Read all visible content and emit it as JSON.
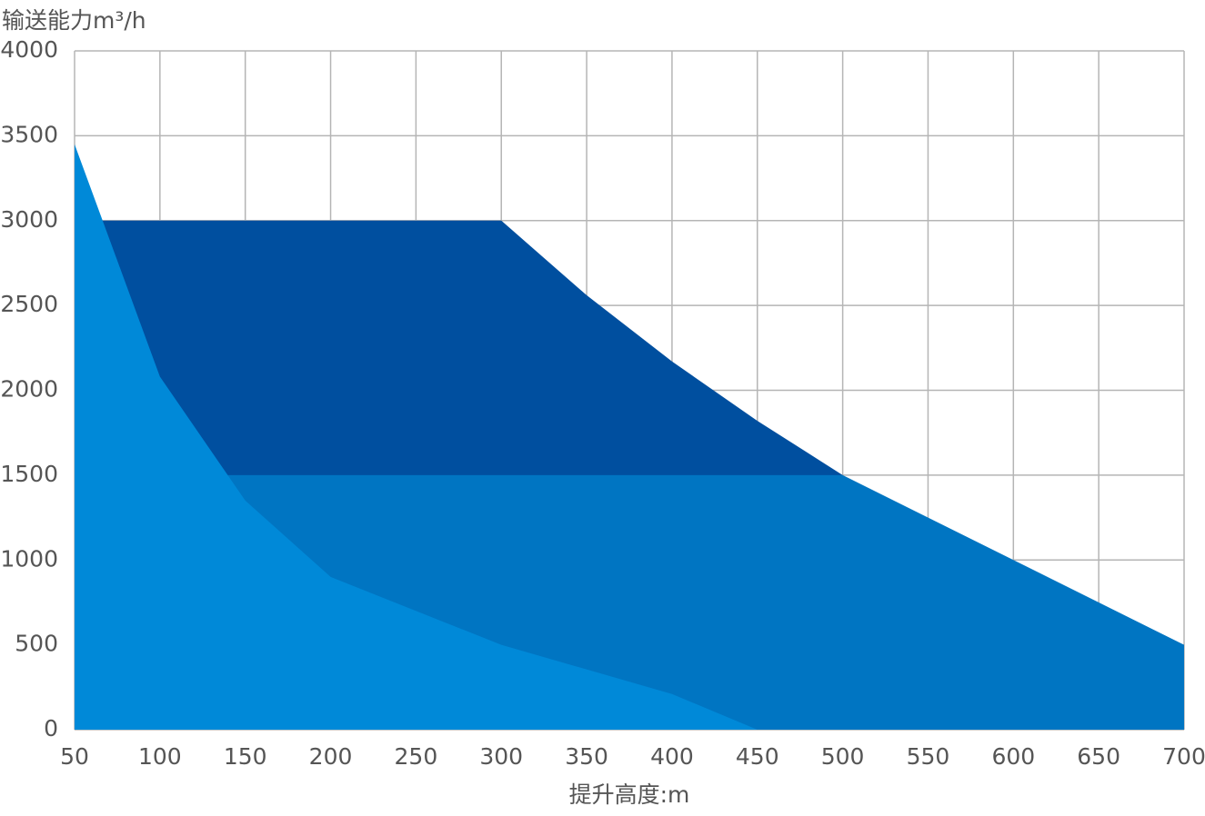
{
  "chart_data": {
    "type": "area",
    "ylabel": "输送能力m³/h",
    "xlabel": "提升高度:m",
    "xlim": [
      50,
      700
    ],
    "xticks": [
      50,
      100,
      150,
      200,
      250,
      300,
      350,
      400,
      450,
      500,
      550,
      600,
      650,
      700
    ],
    "ylim": [
      0,
      4000
    ],
    "yticks": [
      0,
      500,
      1000,
      1500,
      2000,
      2500,
      3000,
      3500,
      4000
    ],
    "grid": true,
    "series": [
      {
        "color": "#004f9f",
        "x": [
          50,
          300,
          325,
          350,
          400,
          450,
          500
        ],
        "values": [
          3000,
          3000,
          2780,
          2560,
          2170,
          1820,
          1500
        ]
      },
      {
        "color": "#0075c2",
        "x": [
          50,
          500,
          700
        ],
        "values": [
          1500,
          1500,
          500
        ]
      },
      {
        "color": "#0089d8",
        "x": [
          50,
          100,
          150,
          200,
          300,
          400,
          450
        ],
        "values": [
          3450,
          2080,
          1350,
          900,
          500,
          210,
          0
        ]
      }
    ]
  }
}
